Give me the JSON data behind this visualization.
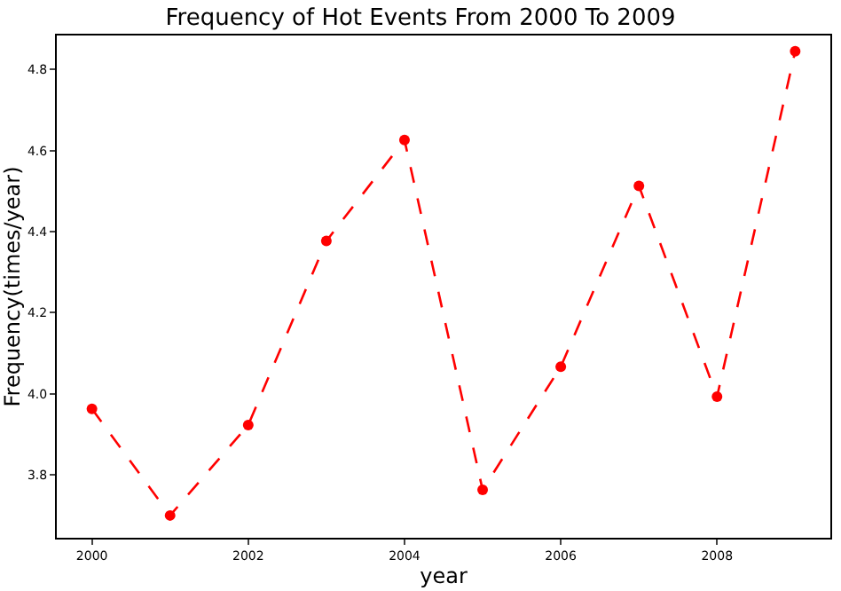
{
  "chart_data": {
    "type": "line",
    "title": "Frequency of Hot Events From 2000 To 2009",
    "xlabel": "year",
    "ylabel": "Frequency(times/year)",
    "x": [
      2000,
      2001,
      2002,
      2003,
      2004,
      2005,
      2006,
      2007,
      2008,
      2009
    ],
    "series": [
      {
        "color": "#ff0000",
        "values": [
          3.963,
          3.7,
          3.923,
          4.377,
          4.626,
          3.763,
          4.067,
          4.513,
          3.993,
          4.845
        ]
      }
    ],
    "xlim": [
      1999.55,
      2009.45
    ],
    "ylim": [
      3.645,
      4.884
    ],
    "xticks": [
      2000,
      2002,
      2004,
      2006,
      2008
    ],
    "yticks": [
      3.8,
      {
        "value": 4.0,
        "label": "4.0"
      },
      4.2,
      4.4,
      4.6,
      4.8
    ],
    "marker": "circle",
    "line_style": "dashed"
  }
}
